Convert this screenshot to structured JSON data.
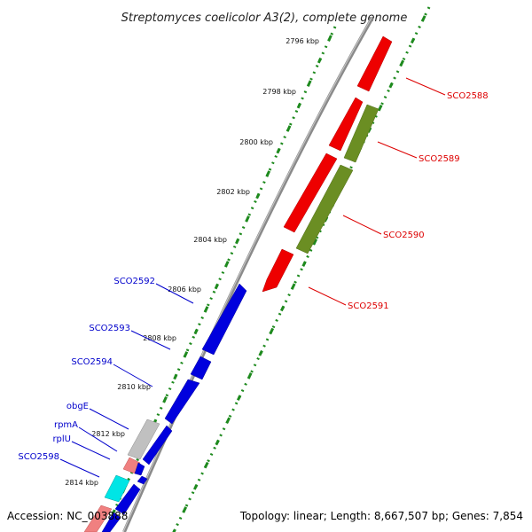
{
  "title": "Streptomyces coelicolor A3(2), complete genome",
  "footer": {
    "accession": "Accession: NC_003888",
    "summary": "Topology: linear; Length: 8,667,507 bp; Genes: 7,854"
  },
  "colors": {
    "backbone": "#8a8a8a",
    "tick_green": "#1e8a1e",
    "label_red": "#dd0000",
    "label_blue": "#0000cc",
    "gene_red": "#ee0000",
    "gene_olive": "#6b8e23",
    "gene_blue": "#0000dd",
    "gene_grey": "#c0c0c0",
    "gene_pink": "#f08080",
    "gene_cyan": "#00e5e5"
  },
  "axis": {
    "unit": "kbp",
    "labels": [
      "2796 kbp",
      "2798 kbp",
      "2800 kbp",
      "2802 kbp",
      "2804 kbp",
      "2806 kbp",
      "2808 kbp",
      "2810 kbp",
      "2812 kbp",
      "2814 kbp"
    ]
  },
  "gene_labels_right": [
    "SCO2588",
    "SCO2589",
    "SCO2590",
    "SCO2591"
  ],
  "gene_labels_left": [
    "SCO2592",
    "SCO2593",
    "SCO2594",
    "obgE",
    "rpmA",
    "rplU",
    "SCO2598"
  ]
}
